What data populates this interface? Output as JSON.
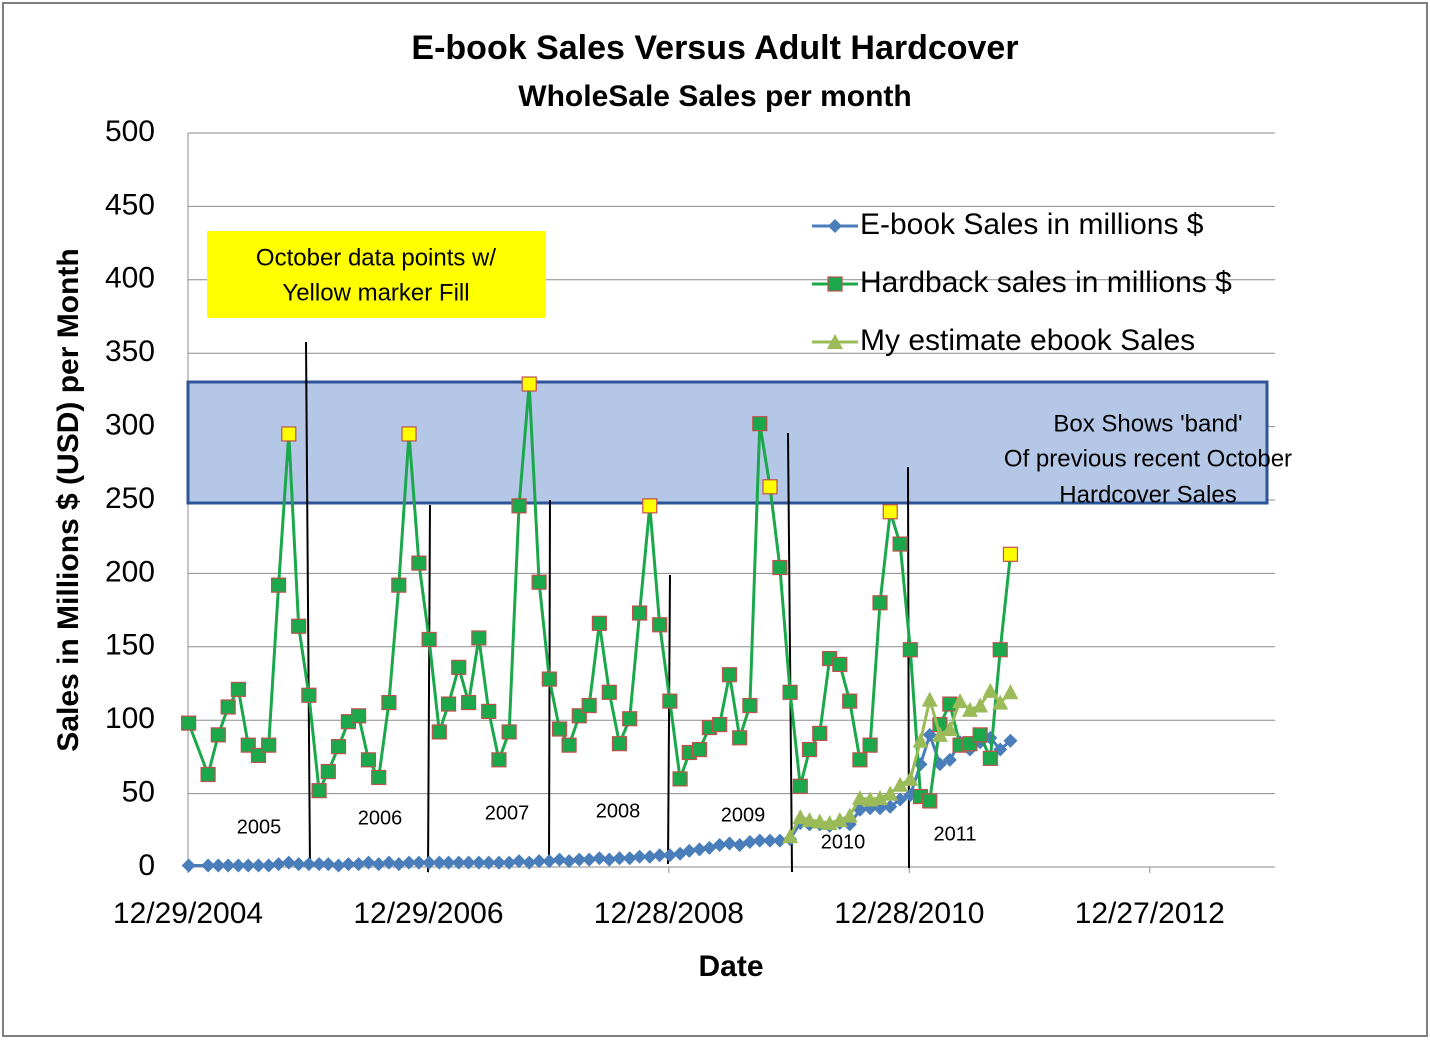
{
  "chart_data": {
    "type": "line",
    "title": "E-book Sales Versus Adult Hardcover",
    "subtitle": "WholeSale Sales per month",
    "x_label": "Date",
    "y_label": "Sales in Millions $ (USD) per Month",
    "ylim": [
      0,
      500
    ],
    "yticks": [
      0,
      50,
      100,
      150,
      200,
      250,
      300,
      350,
      400,
      450,
      500
    ],
    "xlim": [
      "2004-12-29",
      "2013-12-27"
    ],
    "xticks": [
      {
        "value": "2004-12-29",
        "label": "12/29/2004"
      },
      {
        "value": "2006-12-29",
        "label": "12/29/2006"
      },
      {
        "value": "2008-12-28",
        "label": "12/28/2008"
      },
      {
        "value": "2010-12-28",
        "label": "12/28/2010"
      },
      {
        "value": "2012-12-27",
        "label": "12/27/2012"
      }
    ],
    "grid": true,
    "legend": "upper right",
    "highlight_fill": "#ffff00",
    "annotations": [
      "October data points w/",
      "Yellow marker Fill",
      "Box Shows 'band'",
      "Of previous recent  October",
      "Hardcover Sales",
      "2005",
      "2006",
      "2007",
      "2008",
      "2009",
      "2010",
      "2011"
    ],
    "series": [
      {
        "name": "E-book Sales in millions $",
        "color": "#4a7ebb",
        "marker": "diamond",
        "x": [
          "2004-12",
          "2005-02",
          "2005-03",
          "2005-04",
          "2005-05",
          "2005-06",
          "2005-07",
          "2005-08",
          "2005-09",
          "2005-10",
          "2005-11",
          "2005-12",
          "2006-01",
          "2006-02",
          "2006-03",
          "2006-04",
          "2006-05",
          "2006-06",
          "2006-07",
          "2006-08",
          "2006-09",
          "2006-10",
          "2006-11",
          "2006-12",
          "2007-01",
          "2007-02",
          "2007-03",
          "2007-04",
          "2007-05",
          "2007-06",
          "2007-07",
          "2007-08",
          "2007-09",
          "2007-10",
          "2007-11",
          "2007-12",
          "2008-01",
          "2008-02",
          "2008-03",
          "2008-04",
          "2008-05",
          "2008-06",
          "2008-07",
          "2008-08",
          "2008-09",
          "2008-10",
          "2008-11",
          "2008-12",
          "2009-01",
          "2009-02",
          "2009-03",
          "2009-04",
          "2009-05",
          "2009-06",
          "2009-07",
          "2009-08",
          "2009-09",
          "2009-10",
          "2009-11",
          "2009-12",
          "2010-01",
          "2010-02",
          "2010-03",
          "2010-04",
          "2010-05",
          "2010-06",
          "2010-07",
          "2010-08",
          "2010-09",
          "2010-10",
          "2010-11",
          "2010-12",
          "2011-01",
          "2011-02",
          "2011-03",
          "2011-04",
          "2011-05",
          "2011-06",
          "2011-07",
          "2011-08",
          "2011-09",
          "2011-10"
        ],
        "values": [
          1,
          1,
          1,
          1,
          1,
          1,
          1,
          1,
          2,
          3,
          2,
          2,
          2,
          2,
          1,
          2,
          2,
          3,
          2,
          3,
          2,
          3,
          3,
          3,
          3,
          3,
          3,
          3,
          3,
          3,
          3,
          3,
          4,
          3,
          4,
          4,
          5,
          4,
          5,
          5,
          6,
          5,
          6,
          6,
          7,
          7,
          8,
          8,
          9,
          11,
          12,
          13,
          15,
          16,
          15,
          17,
          18,
          18,
          18,
          19,
          30,
          29,
          29,
          28,
          30,
          29,
          39,
          40,
          40,
          41,
          46,
          49,
          70,
          90,
          70,
          73,
          85,
          80,
          85,
          88,
          80,
          86
        ]
      },
      {
        "name": "Hardback sales in millions $",
        "color": "#1aa84b",
        "marker": "square",
        "x": [
          "2004-12",
          "2005-02",
          "2005-03",
          "2005-04",
          "2005-05",
          "2005-06",
          "2005-07",
          "2005-08",
          "2005-09",
          "2005-10",
          "2005-11",
          "2005-12",
          "2006-01",
          "2006-02",
          "2006-03",
          "2006-04",
          "2006-05",
          "2006-06",
          "2006-07",
          "2006-08",
          "2006-09",
          "2006-10",
          "2006-11",
          "2006-12",
          "2007-01",
          "2007-02",
          "2007-03",
          "2007-04",
          "2007-05",
          "2007-06",
          "2007-07",
          "2007-08",
          "2007-09",
          "2007-10",
          "2007-11",
          "2007-12",
          "2008-01",
          "2008-02",
          "2008-03",
          "2008-04",
          "2008-05",
          "2008-06",
          "2008-07",
          "2008-08",
          "2008-09",
          "2008-10",
          "2008-11",
          "2008-12",
          "2009-01",
          "2009-02",
          "2009-03",
          "2009-04",
          "2009-05",
          "2009-06",
          "2009-07",
          "2009-08",
          "2009-09",
          "2009-10",
          "2009-11",
          "2009-12",
          "2010-01",
          "2010-02",
          "2010-03",
          "2010-04",
          "2010-05",
          "2010-06",
          "2010-07",
          "2010-08",
          "2010-09",
          "2010-10",
          "2010-11",
          "2010-12",
          "2011-01",
          "2011-02",
          "2011-03",
          "2011-04",
          "2011-05",
          "2011-06",
          "2011-07",
          "2011-08",
          "2011-09",
          "2011-10"
        ],
        "values": [
          98,
          63,
          90,
          109,
          121,
          83,
          76,
          83,
          192,
          295,
          164,
          117,
          52,
          65,
          82,
          99,
          103,
          73,
          61,
          112,
          192,
          295,
          207,
          155,
          92,
          111,
          136,
          112,
          156,
          106,
          73,
          92,
          246,
          329,
          194,
          128,
          94,
          83,
          103,
          110,
          166,
          119,
          84,
          101,
          173,
          246,
          165,
          113,
          60,
          78,
          80,
          95,
          97,
          131,
          88,
          110,
          302,
          259,
          204,
          119,
          55,
          80,
          91,
          142,
          138,
          113,
          73,
          83,
          180,
          242,
          220,
          148,
          48,
          45,
          97,
          111,
          83,
          84,
          90,
          74,
          148,
          213
        ]
      },
      {
        "name": "My estimate ebook Sales",
        "color": "#9bbb59",
        "marker": "triangle",
        "x": [
          "2009-12",
          "2010-01",
          "2010-02",
          "2010-03",
          "2010-04",
          "2010-05",
          "2010-06",
          "2010-07",
          "2010-08",
          "2010-09",
          "2010-10",
          "2010-11",
          "2010-12",
          "2011-01",
          "2011-02",
          "2011-03",
          "2011-04",
          "2011-05",
          "2011-06",
          "2011-07",
          "2011-08",
          "2011-09",
          "2011-10"
        ],
        "values": [
          21,
          34,
          32,
          31,
          30,
          32,
          35,
          47,
          46,
          47,
          50,
          56,
          60,
          86,
          114,
          90,
          94,
          113,
          107,
          110,
          120,
          112,
          119
        ]
      }
    ]
  }
}
